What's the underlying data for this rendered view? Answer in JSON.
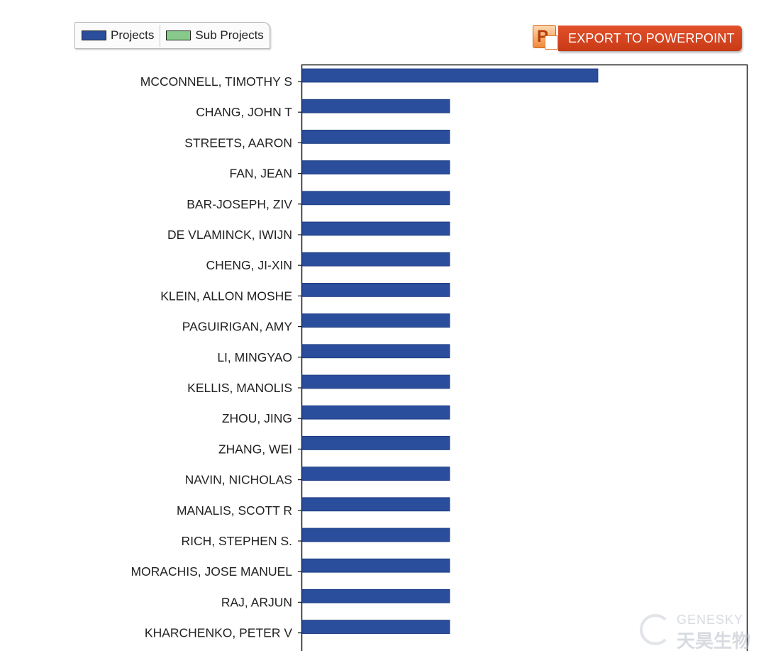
{
  "legend": {
    "items": [
      {
        "label": "Projects",
        "color": "#2a4d9c"
      },
      {
        "label": "Sub Projects",
        "color": "#86c98a"
      }
    ]
  },
  "toolbar": {
    "export_label": "EXPORT TO POWERPOINT",
    "icon_letter": "P"
  },
  "watermark": {
    "brand_en": "GENESKY",
    "brand_cn": "天昊生物"
  },
  "chart_data": {
    "type": "bar",
    "orientation": "horizontal",
    "categories": [
      "MCCONNELL, TIMOTHY S",
      "CHANG, JOHN T",
      "STREETS, AARON",
      "FAN, JEAN",
      "BAR-JOSEPH, ZIV",
      "DE VLAMINCK, IWIJN",
      "CHENG, JI-XIN",
      "KLEIN, ALLON MOSHE",
      "PAGUIRIGAN, AMY",
      "LI, MINGYAO",
      "KELLIS, MANOLIS",
      "ZHOU, JING",
      "ZHANG, WEI",
      "NAVIN, NICHOLAS",
      "MANALIS, SCOTT R",
      "RICH, STEPHEN S.",
      "MORACHIS, JOSE MANUEL",
      "RAJ, ARJUN",
      "KHARCHENKO, PETER V"
    ],
    "series": [
      {
        "name": "Projects",
        "color": "#2a4d9c",
        "values": [
          2,
          1,
          1,
          1,
          1,
          1,
          1,
          1,
          1,
          1,
          1,
          1,
          1,
          1,
          1,
          1,
          1,
          1,
          1
        ]
      },
      {
        "name": "Sub Projects",
        "color": "#86c98a",
        "values": [
          0,
          0,
          0,
          0,
          0,
          0,
          0,
          0,
          0,
          0,
          0,
          0,
          0,
          0,
          0,
          0,
          0,
          0,
          0
        ]
      }
    ],
    "xlim": [
      0,
      3
    ],
    "title": "",
    "xlabel": "",
    "ylabel": "",
    "grid": false,
    "legend_position": "top-left"
  }
}
